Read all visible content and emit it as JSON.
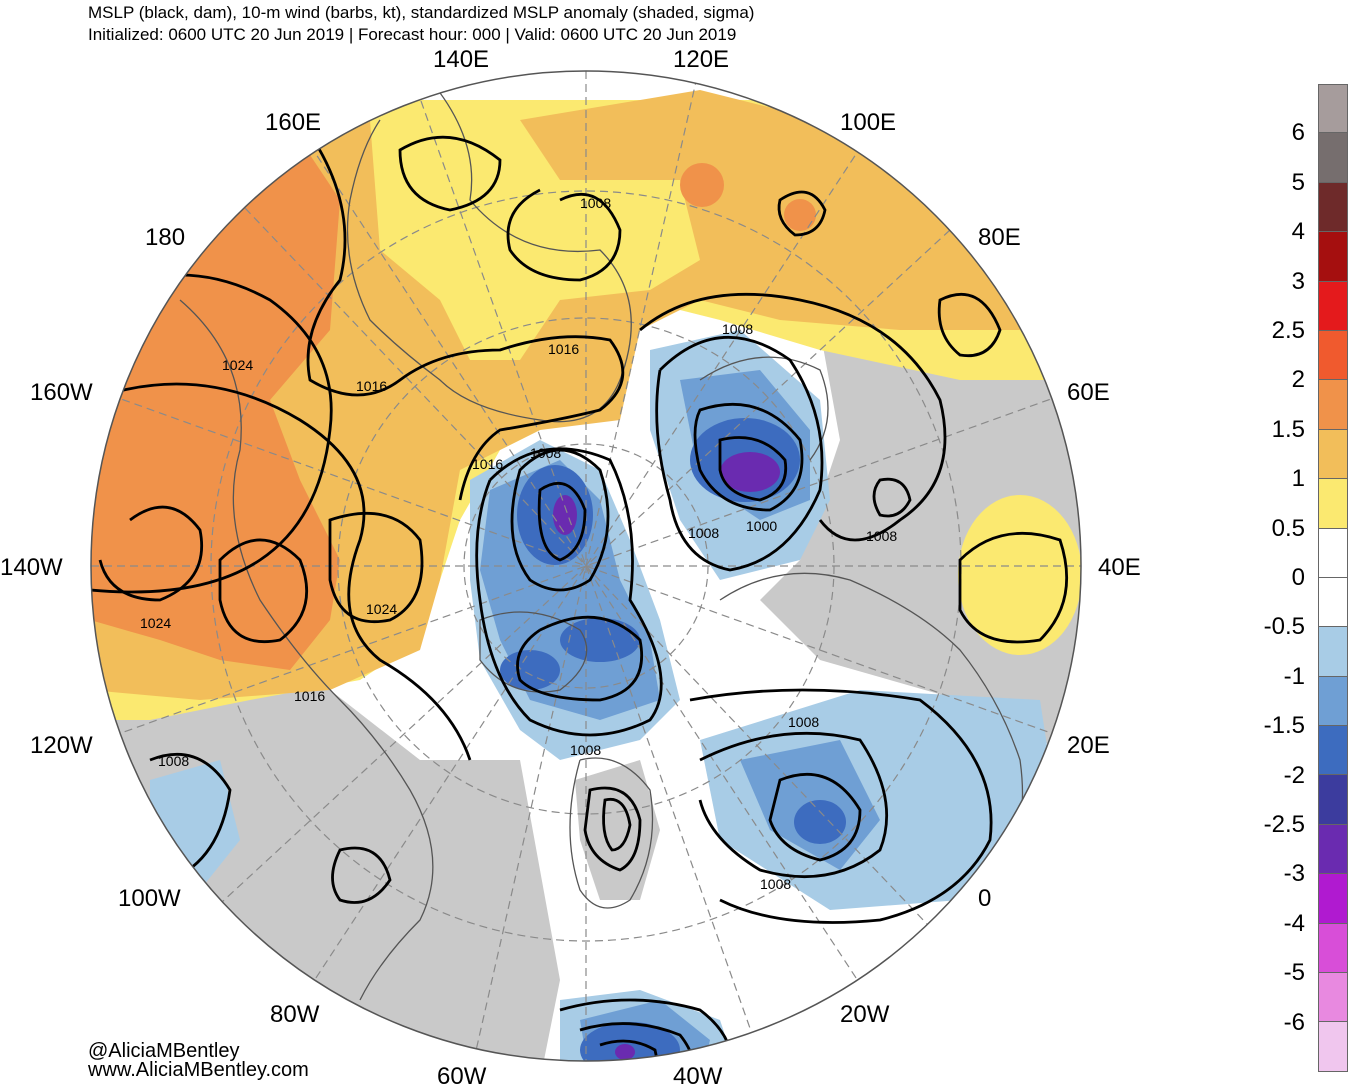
{
  "header": {
    "title": "MSLP (black, dam), 10-m wind (barbs, kt), standardized MSLP anomaly (shaded, sigma)",
    "subtitle": "Initialized: 0600 UTC 20 Jun 2019 | Forecast hour: 000 | Valid: 0600 UTC 20 Jun 2019"
  },
  "map": {
    "projection": "north polar stereographic",
    "longitude_labels": {
      "e140": "140E",
      "e120": "120E",
      "e160": "160E",
      "e100": "100E",
      "d180": "180",
      "e80": "80E",
      "w160": "160W",
      "e60": "60E",
      "w140": "140W",
      "e40": "40E",
      "w120": "120W",
      "e20": "20E",
      "w100": "100W",
      "d0": "0",
      "w80": "80W",
      "w20": "20W",
      "w60": "60W",
      "w40": "40W"
    },
    "isobar_labels": {
      "a": "1008",
      "b": "1008",
      "c": "1016",
      "d": "1024",
      "e": "1016",
      "f": "1016",
      "g": "1008",
      "h": "1008",
      "i": "1000",
      "j": "1008",
      "k": "1024",
      "l": "1024",
      "m": "1016",
      "n": "1008",
      "o": "1008",
      "p": "1008",
      "q": "1008"
    }
  },
  "colorbar": {
    "colors": [
      "#a69c9c",
      "#766e6e",
      "#6e2a2a",
      "#a50f0f",
      "#e41a1c",
      "#f05a2e",
      "#f0924a",
      "#f2be5a",
      "#fbe970",
      "#ffffff",
      "#ffffff",
      "#a8cce6",
      "#6f9fd4",
      "#3d6cbf",
      "#3c3c9e",
      "#6a2bb0",
      "#b01ad0",
      "#d84ed8",
      "#e889e0",
      "#f0c6ee"
    ],
    "ticks": [
      "6",
      "5",
      "4",
      "3",
      "2.5",
      "2",
      "1.5",
      "1",
      "0.5",
      "0",
      "-0.5",
      "-1",
      "-1.5",
      "-2",
      "-2.5",
      "-3",
      "-4",
      "-5",
      "-6"
    ]
  },
  "credits": {
    "handle": "@AliciaMBentley",
    "website": "www.AliciaMBentley.com"
  }
}
